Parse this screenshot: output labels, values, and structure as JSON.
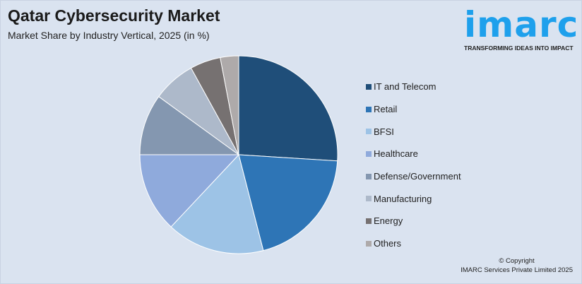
{
  "header": {
    "title": "Qatar Cybersecurity Market",
    "subtitle": "Market Share by Industry Vertical, 2025 (in %)"
  },
  "logo": {
    "word": "imarc",
    "tagline": "TRANSFORMING IDEAS INTO IMPACT",
    "color": "#1ea0ec"
  },
  "footer": {
    "copyright": "© Copyright",
    "company": "IMARC Services Private Limited 2025"
  },
  "chart_data": {
    "type": "pie",
    "title": "Qatar Cybersecurity Market",
    "subtitle": "Market Share by Industry Vertical, 2025 (in %)",
    "legend_position": "right",
    "start": "top, clockwise",
    "categories": [
      "IT and Telecom",
      "Retail",
      "BFSI",
      "Healthcare",
      "Defense/Government",
      "Manufacturing",
      "Energy",
      "Others"
    ],
    "values": [
      26,
      20,
      16,
      13,
      10,
      7,
      5,
      3
    ],
    "colors": [
      "#1f4e79",
      "#2e75b6",
      "#9dc3e6",
      "#8faadc",
      "#8497b0",
      "#adb9ca",
      "#767171",
      "#aeaaaa"
    ]
  }
}
